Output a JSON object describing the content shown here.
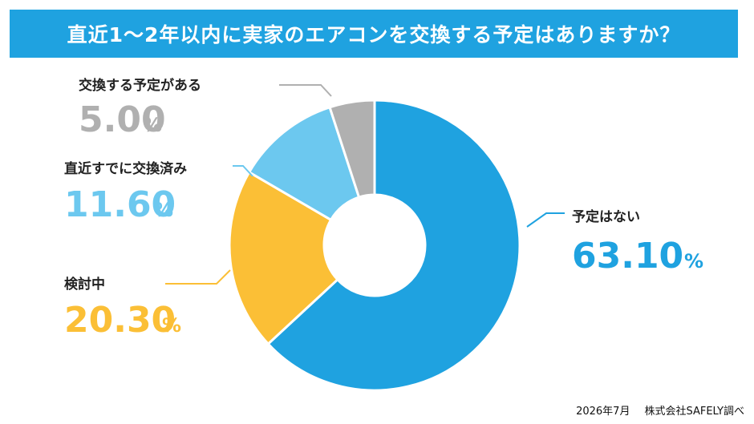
{
  "title": "直近1～2年以内に実家のエアコンを交換する予定はありますか？",
  "footer": {
    "date": "2026年7月",
    "source": "株式会社SAFELY調べ"
  },
  "chart_data": {
    "type": "pie",
    "variant": "donut",
    "unit": "%",
    "start_angle_deg": 0,
    "direction": "clockwise",
    "slices": [
      {
        "label": "予定はない",
        "value": 63.1,
        "display": "63.10",
        "color": "#1fa2e0",
        "label_side": "right"
      },
      {
        "label": "検討中",
        "value": 20.3,
        "display": "20.30",
        "color": "#fbbf36",
        "label_side": "left"
      },
      {
        "label": "直近すでに交換済み",
        "value": 11.6,
        "display": "11.60",
        "color": "#6cc8ef",
        "label_side": "left"
      },
      {
        "label": "交換する予定がある",
        "value": 5.0,
        "display": "5.00",
        "color": "#b0b0b0",
        "label_side": "left"
      }
    ]
  }
}
